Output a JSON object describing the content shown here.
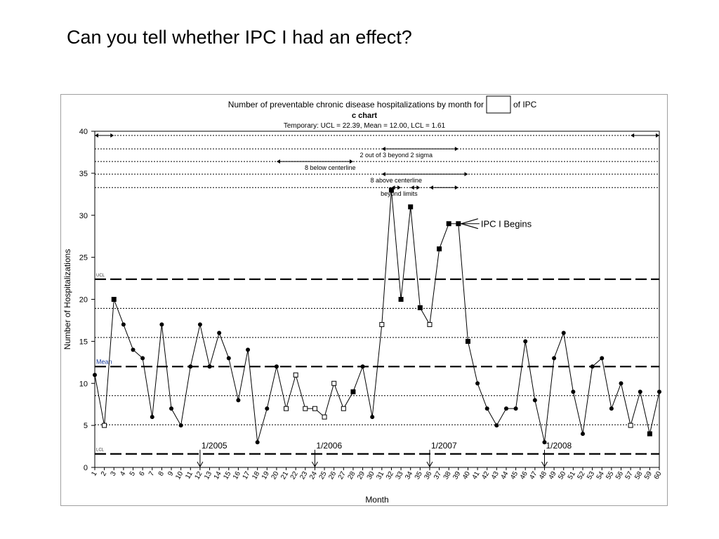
{
  "slide": {
    "title": "Can you tell whether IPC I had an effect?"
  },
  "chart_data": {
    "type": "line",
    "title_before": "Number of preventable chronic disease hospitalizations by month for",
    "title_after": "of IPC",
    "subtitle": "c chart",
    "limits_text": "Temporary: UCL = 22.39, Mean = 12.00, LCL = 1.61",
    "xlabel": "Month",
    "ylabel": "Number of Hospitalizations",
    "ylim": [
      0,
      40
    ],
    "yticks": [
      0,
      5,
      10,
      15,
      20,
      25,
      30,
      35,
      40
    ],
    "x": [
      1,
      2,
      3,
      4,
      5,
      6,
      7,
      8,
      9,
      10,
      11,
      12,
      13,
      14,
      15,
      16,
      17,
      18,
      19,
      20,
      21,
      22,
      23,
      24,
      25,
      26,
      27,
      28,
      29,
      30,
      31,
      32,
      33,
      34,
      35,
      36,
      37,
      38,
      39,
      40,
      41,
      42,
      43,
      44,
      45,
      46,
      47,
      48,
      49,
      50,
      51,
      52,
      53,
      54,
      55,
      56,
      57,
      58,
      59,
      60
    ],
    "values": [
      11,
      5,
      20,
      17,
      14,
      13,
      6,
      17,
      7,
      5,
      12,
      17,
      12,
      16,
      13,
      8,
      14,
      3,
      7,
      12,
      7,
      11,
      7,
      7,
      6,
      10,
      7,
      9,
      12,
      6,
      17,
      33,
      20,
      31,
      19,
      17,
      26,
      29,
      29,
      15,
      10,
      7,
      5,
      7,
      7,
      15,
      8,
      3,
      13,
      16,
      9,
      4,
      12,
      13,
      7,
      10,
      5,
      9,
      4,
      9
    ],
    "marker_types": [
      "dot",
      "open",
      "filled",
      "dot",
      "dot",
      "dot",
      "dot",
      "dot",
      "dot",
      "dot",
      "dot",
      "dot",
      "dot",
      "dot",
      "dot",
      "dot",
      "dot",
      "dot",
      "dot",
      "dot",
      "open",
      "open",
      "open",
      "open",
      "open",
      "open",
      "open",
      "filled",
      "dot",
      "dot",
      "open",
      "filled",
      "filled",
      "filled",
      "filled",
      "open",
      "filled",
      "filled",
      "filled",
      "filled",
      "dot",
      "dot",
      "dot",
      "dot",
      "dot",
      "dot",
      "dot",
      "dot",
      "dot",
      "dot",
      "dot",
      "dot",
      "dot",
      "dot",
      "dot",
      "dot",
      "open",
      "dot",
      "filled",
      "dot"
    ],
    "control_lines": [
      {
        "label": "UCL",
        "value": 22.39,
        "style": "long-dash"
      },
      {
        "label": "Mean",
        "value": 12.0,
        "style": "long-dash"
      },
      {
        "label": "LCL",
        "value": 1.61,
        "style": "long-dash"
      }
    ],
    "sigma_lines": [
      5.07,
      8.54,
      15.46,
      18.93
    ],
    "rule_lines": [
      {
        "label": "",
        "y": 39.5,
        "spans": [
          [
            1,
            3
          ],
          [
            57,
            60
          ]
        ]
      },
      {
        "label": "2 out of 3 beyond 2 sigma",
        "y": 37.9,
        "spans": [
          [
            31,
            39
          ]
        ]
      },
      {
        "label": "8 below centerline",
        "y": 36.4,
        "spans": [
          [
            20,
            28
          ]
        ]
      },
      {
        "label": "8 above centerline",
        "y": 34.9,
        "spans": [
          [
            31,
            40
          ]
        ]
      },
      {
        "label": "beyond limits",
        "y": 33.3,
        "spans": [
          [
            32,
            33
          ],
          [
            34,
            35
          ],
          [
            36,
            39
          ]
        ]
      }
    ],
    "annotations": [
      {
        "text": "1/2005",
        "month": 12
      },
      {
        "text": "1/2006",
        "month": 24
      },
      {
        "text": "1/2007",
        "month": 36
      },
      {
        "text": "1/2008",
        "month": 48
      }
    ],
    "callout": {
      "text": "IPC I Begins",
      "month": 39,
      "value": 29
    },
    "grid": false
  },
  "colors": {
    "line": "#000000",
    "frame": "#a0a0a0",
    "mean_label": "#1a3c9c",
    "label_gray": "#333333"
  }
}
